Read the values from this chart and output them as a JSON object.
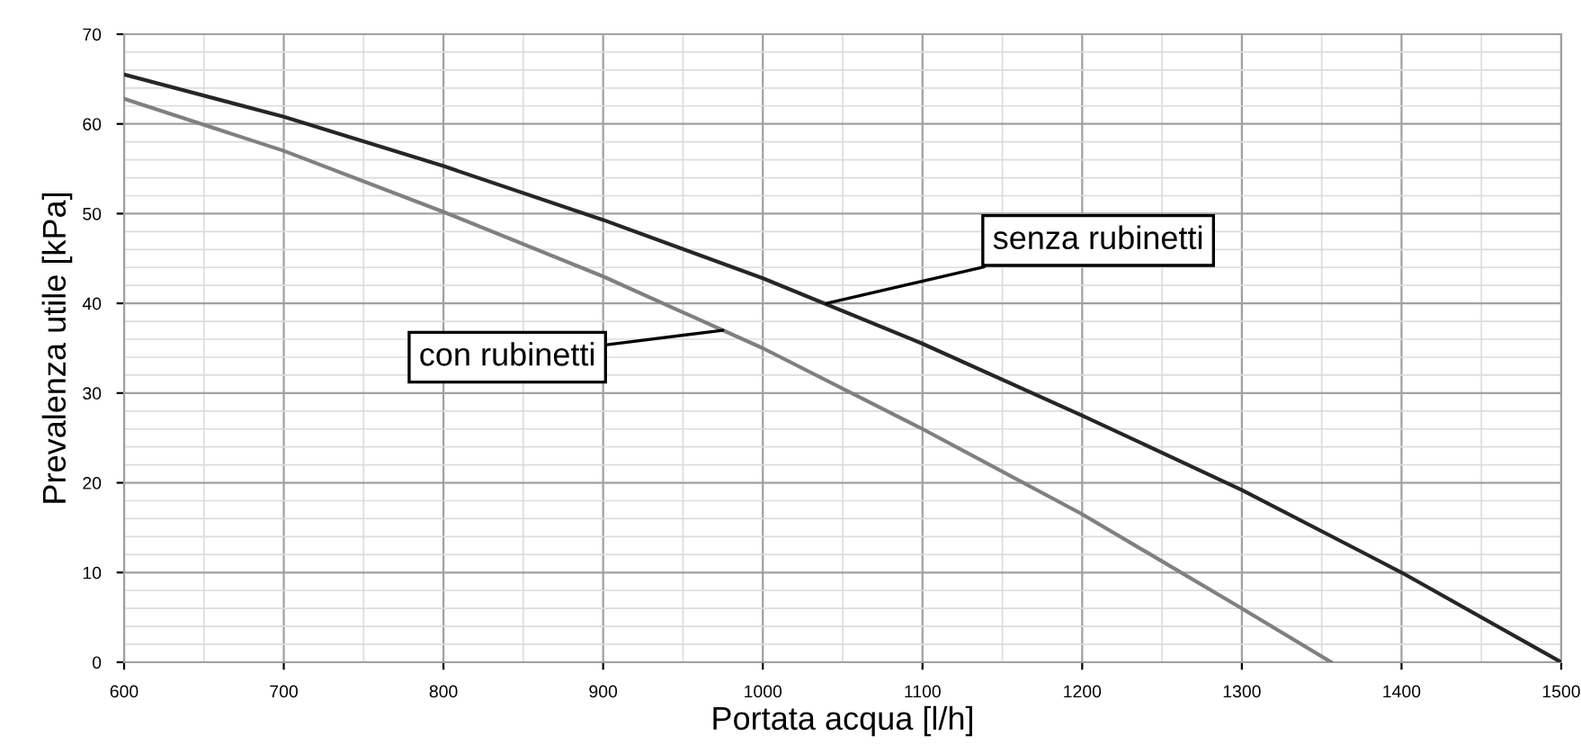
{
  "chart_data": {
    "type": "line",
    "xlabel": "Portata acqua [l/h]",
    "ylabel": "Prevalenza utile [kPa]",
    "xlim": [
      600,
      1500
    ],
    "ylim": [
      0,
      70
    ],
    "xticks": [
      600,
      700,
      800,
      900,
      1000,
      1100,
      1200,
      1300,
      1400,
      1500
    ],
    "yticks": [
      0,
      10,
      20,
      30,
      40,
      50,
      60,
      70
    ],
    "grid": true,
    "marker": "none",
    "line_style": "solid",
    "series": [
      {
        "color": "#262626",
        "x": [
          600,
          700,
          800,
          900,
          1000,
          1100,
          1200,
          1300,
          1400,
          1500
        ],
        "values": [
          65.5,
          60.8,
          55.3,
          49.3,
          42.8,
          35.5,
          27.5,
          19.2,
          10,
          0
        ]
      },
      {
        "color": "#808080",
        "x": [
          600,
          700,
          800,
          900,
          1000,
          1100,
          1200,
          1300,
          1356
        ],
        "values": [
          62.8,
          57,
          50.2,
          43,
          35,
          26,
          16.5,
          6,
          0
        ]
      }
    ],
    "annotations": [
      {
        "text": "senza rubinetti",
        "x": 1040,
        "y": 40
      },
      {
        "text": "con rubinetti",
        "x": 975,
        "y": 37
      }
    ]
  }
}
